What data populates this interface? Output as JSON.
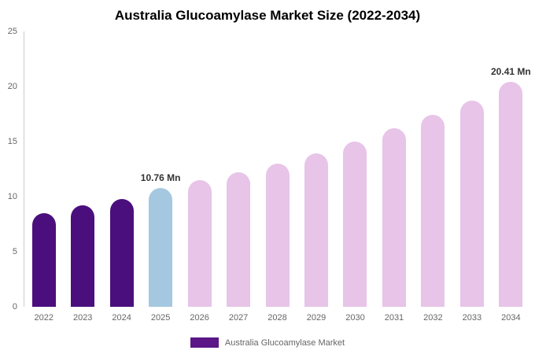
{
  "title": "Australia Glucoamylase Market Size (2022-2034)",
  "legend": {
    "label": "Australia Glucoamylase Market",
    "swatch_color": "#5b1687"
  },
  "colors": {
    "historical_bar": "#4a0f7d",
    "current_year_bar": "#a5c8e1",
    "forecast_bar": "#e7c4e8",
    "axis_line": "#cccccc",
    "tick_text": "#666666",
    "annotation_text": "#333333"
  },
  "chart_data": {
    "type": "bar",
    "title": "Australia Glucoamylase Market Size (2022-2034)",
    "xlabel": "",
    "ylabel": "",
    "ylim": [
      0,
      25
    ],
    "yticks": [
      0,
      5,
      10,
      15,
      20,
      25
    ],
    "grid": false,
    "legend_position": "bottom",
    "categories": [
      "2022",
      "2023",
      "2024",
      "2025",
      "2026",
      "2027",
      "2028",
      "2029",
      "2030",
      "2031",
      "2032",
      "2033",
      "2034"
    ],
    "values": [
      8.5,
      9.2,
      9.8,
      10.76,
      11.5,
      12.2,
      13.0,
      13.9,
      15.0,
      16.2,
      17.4,
      18.7,
      20.41
    ],
    "bar_colors": [
      "#4a0f7d",
      "#4a0f7d",
      "#4a0f7d",
      "#a5c8e1",
      "#e7c4e8",
      "#e7c4e8",
      "#e7c4e8",
      "#e7c4e8",
      "#e7c4e8",
      "#e7c4e8",
      "#e7c4e8",
      "#e7c4e8",
      "#e7c4e8"
    ],
    "annotations": [
      {
        "index": 3,
        "text": "10.76 Mn"
      },
      {
        "index": 12,
        "text": "20.41 Mn"
      }
    ]
  }
}
